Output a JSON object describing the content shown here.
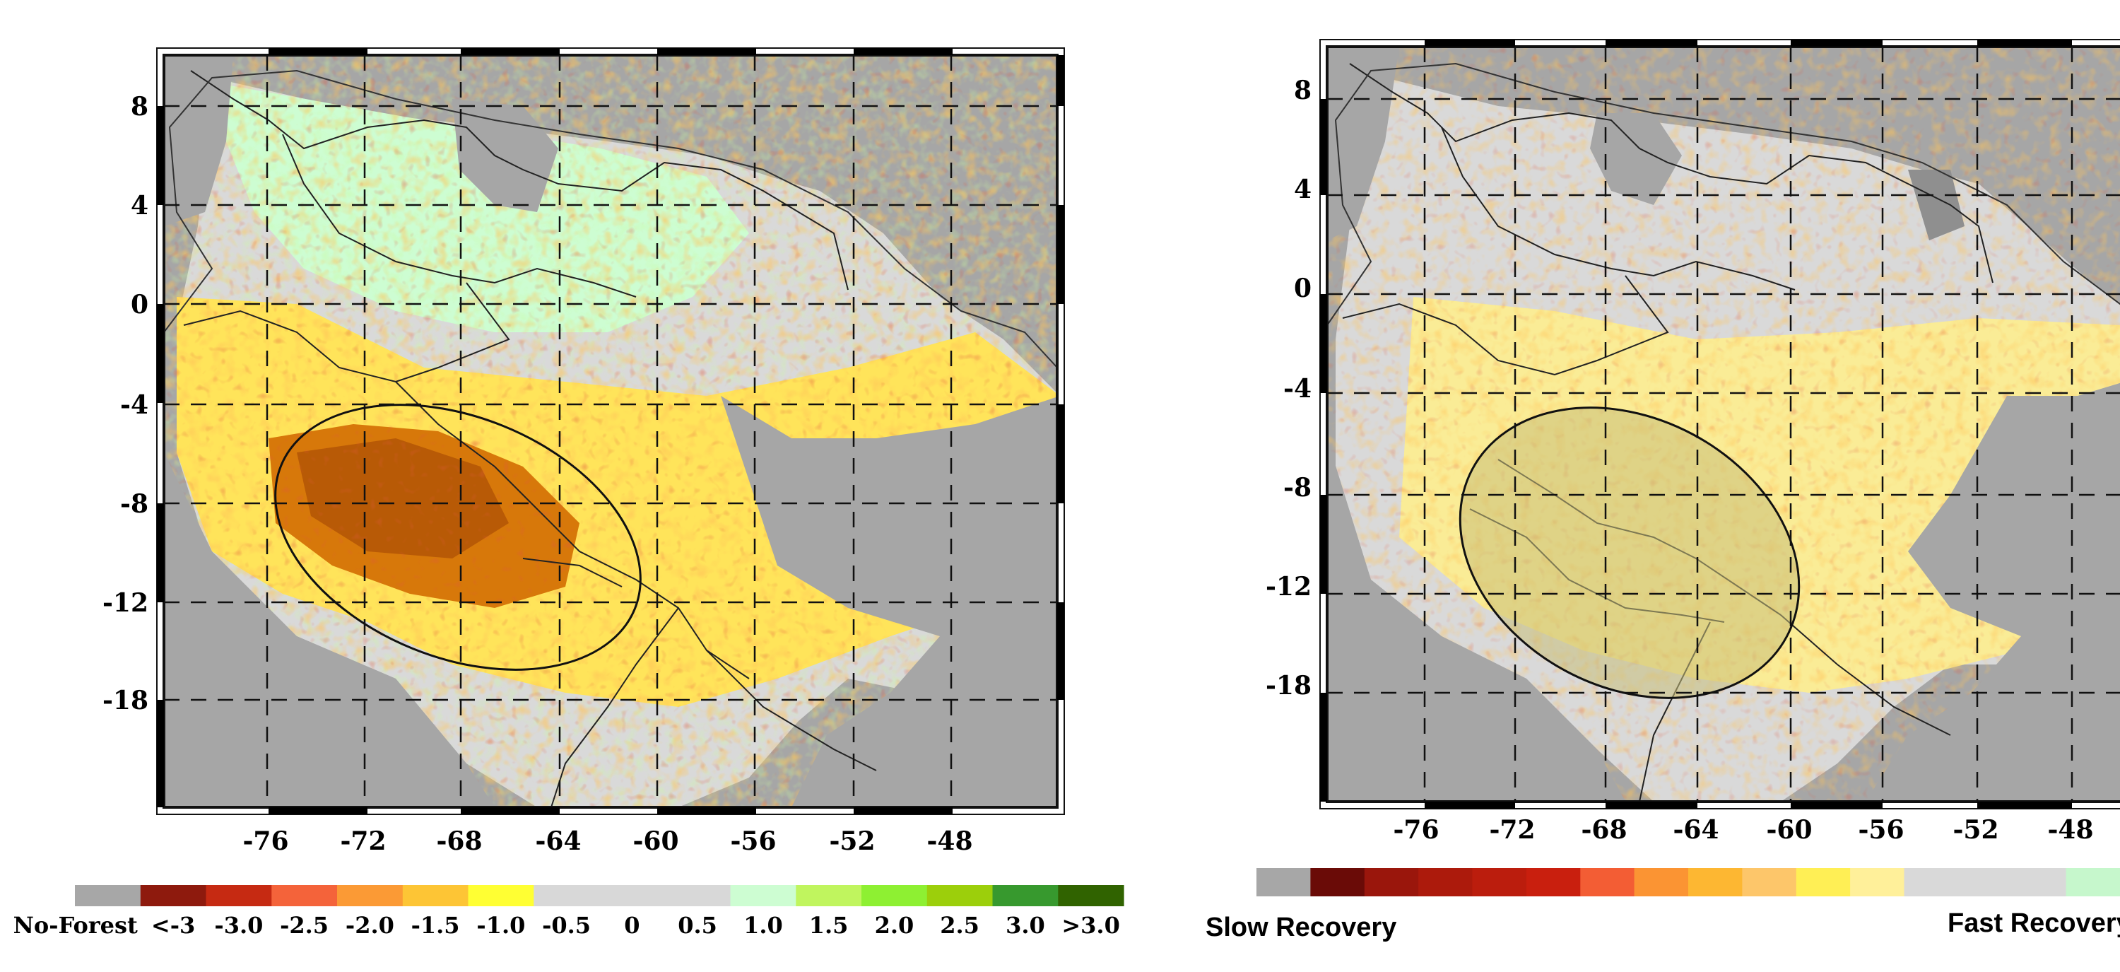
{
  "maps": [
    {
      "id": "left",
      "x_ticks": [
        "-76",
        "-72",
        "-68",
        "-64",
        "-60",
        "-56",
        "-52",
        "-48"
      ],
      "y_ticks": [
        "8",
        "4",
        "0",
        "-4",
        "-8",
        "-12",
        "-18"
      ],
      "legend": {
        "colors": [
          "#a7a7a7",
          "#8e1a0d",
          "#c62a12",
          "#f4633a",
          "#fb9a35",
          "#fdc535",
          "#ffff33",
          "#d8d8d8",
          "#d8d8d8",
          "#d8d8d8",
          "#cdfdd2",
          "#c0f55e",
          "#8ef032",
          "#9ccf0b",
          "#37992e",
          "#306300"
        ],
        "labels": [
          "No-Forest",
          "<-3",
          "-3.0",
          "-2.5",
          "-2.0",
          "-1.5",
          "-1.0",
          "-0.5",
          "0",
          "0.5",
          "1.0",
          "1.5",
          "2.0",
          "2.5",
          "3.0",
          ">3.0"
        ]
      }
    },
    {
      "id": "right",
      "x_ticks": [
        "-76",
        "-72",
        "-68",
        "-64",
        "-60",
        "-56",
        "-52",
        "-48"
      ],
      "y_ticks": [
        "8",
        "4",
        "0",
        "-4",
        "-8",
        "-12",
        "-18"
      ],
      "legend": {
        "colors": [
          "#a7a7a7",
          "#6a0b07",
          "#9a160c",
          "#ac1a0c",
          "#bb1d0d",
          "#c91f0e",
          "#f35d34",
          "#fb9433",
          "#fdb732",
          "#fdc66a",
          "#ffef55",
          "#fff09a",
          "#d9d9d9",
          "#d9d9d9",
          "#d9d9d9",
          "#c6f7cc"
        ],
        "slow_label": "Slow Recovery",
        "fast_label": "Fast Recovery"
      }
    }
  ]
}
